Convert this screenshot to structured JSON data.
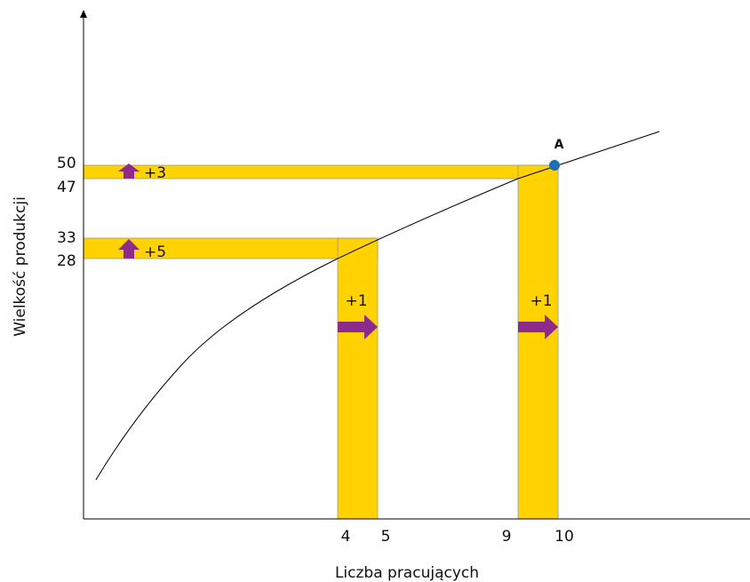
{
  "x_axis_label": "Liczba pracujących",
  "y_axis_label": "Wielkość produkcji",
  "x_ticks": [
    4,
    5,
    9,
    10
  ],
  "y_ticks": [
    50,
    47,
    33,
    28
  ],
  "point_label": "A",
  "increments": [
    "+3",
    "+5",
    "+1",
    "+1"
  ]
}
